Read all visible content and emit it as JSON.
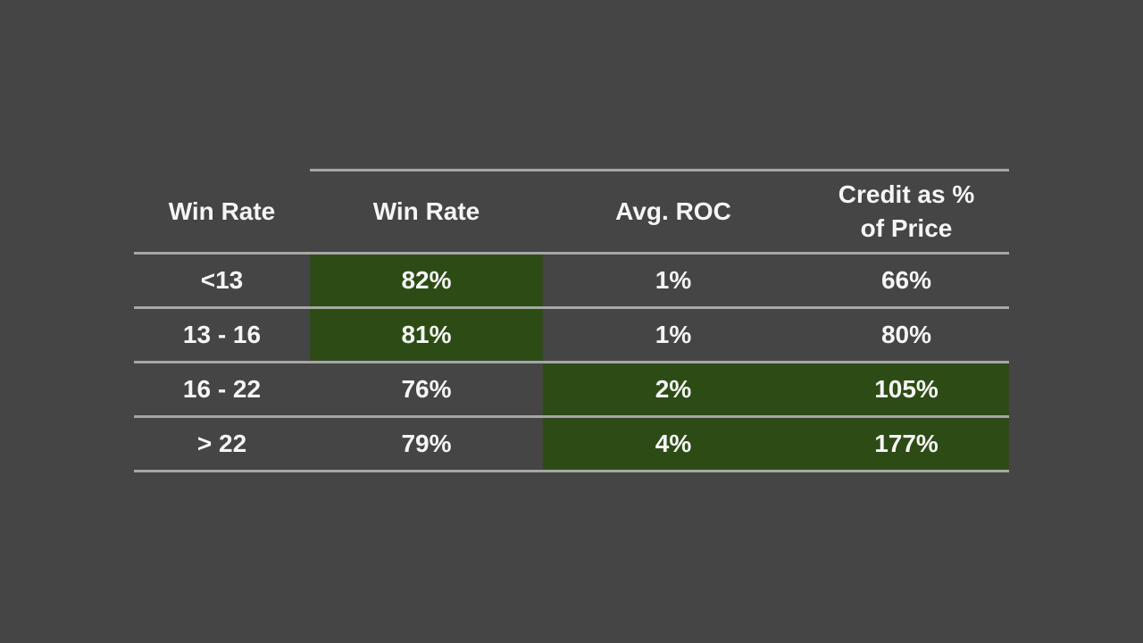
{
  "colors": {
    "background": "#454545",
    "highlight": "#2d4c15",
    "line": "#a6a6a6",
    "text": "#f5f5f5"
  },
  "table": {
    "headers": [
      {
        "text": "Win Rate"
      },
      {
        "text": "Win Rate"
      },
      {
        "text": "Avg. ROC"
      },
      {
        "text": "Credit as %\nof Price"
      }
    ],
    "rows": [
      {
        "cells": [
          {
            "text": "<13",
            "highlight": false
          },
          {
            "text": "82%",
            "highlight": true
          },
          {
            "text": "1%",
            "highlight": false
          },
          {
            "text": "66%",
            "highlight": false
          }
        ]
      },
      {
        "cells": [
          {
            "text": "13 - 16",
            "highlight": false
          },
          {
            "text": "81%",
            "highlight": true
          },
          {
            "text": "1%",
            "highlight": false
          },
          {
            "text": "80%",
            "highlight": false
          }
        ]
      },
      {
        "cells": [
          {
            "text": "16 - 22",
            "highlight": false
          },
          {
            "text": "76%",
            "highlight": false
          },
          {
            "text": "2%",
            "highlight": true
          },
          {
            "text": "105%",
            "highlight": true
          }
        ]
      },
      {
        "cells": [
          {
            "text": "> 22",
            "highlight": false
          },
          {
            "text": "79%",
            "highlight": false
          },
          {
            "text": "4%",
            "highlight": true
          },
          {
            "text": "177%",
            "highlight": true
          }
        ]
      }
    ]
  },
  "chart_data": {
    "type": "table",
    "title": "",
    "columns": [
      "Win Rate",
      "Win Rate",
      "Avg. ROC",
      "Credit as % of Price"
    ],
    "rows": [
      [
        "<13",
        "82%",
        "1%",
        "66%"
      ],
      [
        "13 - 16",
        "81%",
        "1%",
        "80%"
      ],
      [
        "16 - 22",
        "76%",
        "2%",
        "105%"
      ],
      [
        "> 22",
        "79%",
        "4%",
        "177%"
      ]
    ],
    "highlighted_cells": [
      [
        0,
        1
      ],
      [
        1,
        1
      ],
      [
        2,
        2
      ],
      [
        2,
        3
      ],
      [
        3,
        2
      ],
      [
        3,
        3
      ]
    ],
    "highlight_color": "#2d4c15",
    "notes": "Dark slide background with a 4x4 stats table; green cells mark highlighted values"
  }
}
